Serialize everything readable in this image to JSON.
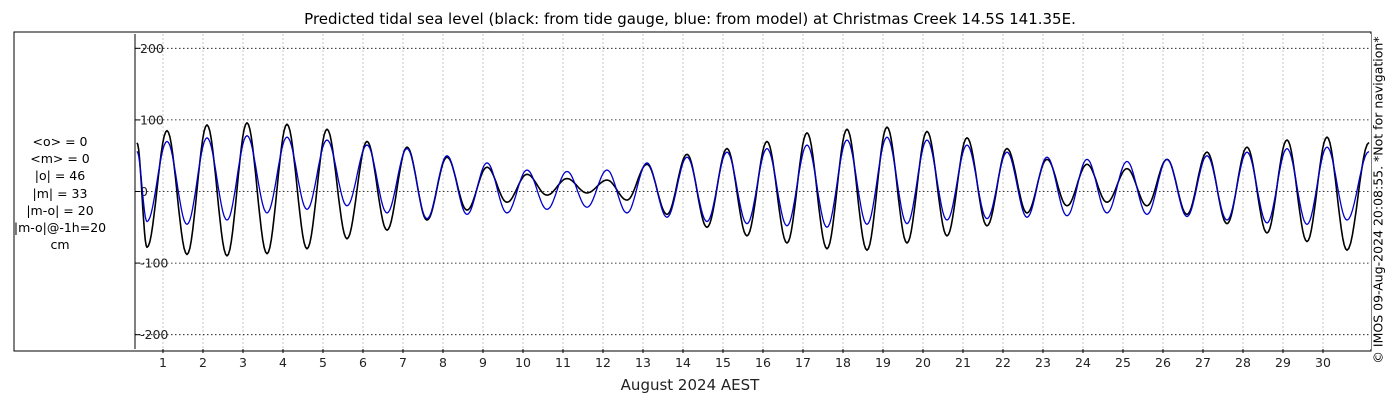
{
  "chart_data": {
    "type": "line",
    "title": "Predicted tidal sea level (black: from tide gauge, blue: from model) at Christmas Creek 14.5S 141.35E.",
    "xlabel": "August 2024 AEST",
    "ylabel": "",
    "xlim": [
      0.3,
      31.2
    ],
    "ylim": [
      -220,
      220
    ],
    "yticks": [
      -200,
      -100,
      0,
      100,
      200
    ],
    "ytick_labels": [
      "-200",
      "-100",
      "0",
      "100",
      "200"
    ],
    "xticks": [
      1,
      2,
      3,
      4,
      5,
      6,
      7,
      8,
      9,
      10,
      11,
      12,
      13,
      14,
      15,
      16,
      17,
      18,
      19,
      20,
      21,
      22,
      23,
      24,
      25,
      26,
      27,
      28,
      29,
      30
    ],
    "xtick_labels": [
      "1",
      "2",
      "3",
      "4",
      "5",
      "6",
      "7",
      "8",
      "9",
      "10",
      "11",
      "12",
      "13",
      "14",
      "15",
      "16",
      "17",
      "18",
      "19",
      "20",
      "21",
      "22",
      "23",
      "24",
      "25",
      "26",
      "27",
      "28",
      "29",
      "30"
    ],
    "grid": true,
    "series": [
      {
        "name": "tide gauge",
        "color": "#000000",
        "x": [
          0.6,
          1.1,
          1.6,
          2.1,
          2.6,
          3.1,
          3.6,
          4.1,
          4.6,
          5.1,
          5.6,
          6.1,
          6.6,
          7.1,
          7.6,
          8.1,
          8.6,
          9.1,
          9.6,
          10.1,
          10.6,
          11.1,
          11.6,
          12.1,
          12.6,
          13.1,
          13.6,
          14.1,
          14.6,
          15.1,
          15.6,
          16.1,
          16.6,
          17.1,
          17.6,
          18.1,
          18.6,
          19.1,
          19.6,
          20.1,
          20.6,
          21.1,
          21.6,
          22.1,
          22.6,
          23.1,
          23.6,
          24.1,
          24.6,
          25.1,
          25.6,
          26.1,
          26.6,
          27.1,
          27.6,
          28.1,
          28.6,
          29.1,
          29.6,
          30.1,
          30.6
        ],
        "values": [
          -78,
          85,
          -88,
          93,
          -90,
          96,
          -87,
          94,
          -80,
          87,
          -66,
          70,
          -54,
          62,
          -40,
          48,
          -26,
          34,
          -15,
          24,
          -5,
          18,
          -2,
          16,
          -12,
          38,
          -32,
          52,
          -50,
          60,
          -62,
          70,
          -72,
          82,
          -80,
          87,
          -82,
          90,
          -72,
          84,
          -62,
          75,
          -48,
          60,
          -30,
          45,
          -20,
          38,
          -15,
          32,
          -20,
          45,
          -32,
          55,
          -45,
          62,
          -58,
          72,
          -70,
          76,
          -82
        ]
      },
      {
        "name": "model",
        "color": "#0000cc",
        "x": [
          0.6,
          1.1,
          1.6,
          2.1,
          2.6,
          3.1,
          3.6,
          4.1,
          4.6,
          5.1,
          5.6,
          6.1,
          6.6,
          7.1,
          7.6,
          8.1,
          8.6,
          9.1,
          9.6,
          10.1,
          10.6,
          11.1,
          11.6,
          12.1,
          12.6,
          13.1,
          13.6,
          14.1,
          14.6,
          15.1,
          15.6,
          16.1,
          16.6,
          17.1,
          17.6,
          18.1,
          18.6,
          19.1,
          19.6,
          20.1,
          20.6,
          21.1,
          21.6,
          22.1,
          22.6,
          23.1,
          23.6,
          24.1,
          24.6,
          25.1,
          25.6,
          26.1,
          26.6,
          27.1,
          27.6,
          28.1,
          28.6,
          29.1,
          29.6,
          30.1,
          30.6
        ],
        "values": [
          -42,
          70,
          -46,
          75,
          -40,
          78,
          -30,
          76,
          -25,
          72,
          -20,
          65,
          -30,
          60,
          -38,
          50,
          -32,
          40,
          -30,
          30,
          -25,
          28,
          -22,
          30,
          -30,
          40,
          -36,
          48,
          -42,
          55,
          -45,
          60,
          -48,
          65,
          -50,
          72,
          -46,
          76,
          -45,
          72,
          -40,
          65,
          -38,
          55,
          -36,
          48,
          -34,
          45,
          -30,
          42,
          -32,
          45,
          -35,
          50,
          -40,
          55,
          -44,
          60,
          -46,
          62,
          -40
        ]
      }
    ],
    "stats": {
      "lines": [
        "<o> = 0",
        "<m> = 0",
        "|o| = 46",
        "|m| = 33",
        "|m-o| = 20",
        "|m-o|@-1h=20",
        "cm"
      ]
    },
    "copyright": "© IMOS 09-Aug-2024 20:08:55. *Not for navigation*"
  }
}
